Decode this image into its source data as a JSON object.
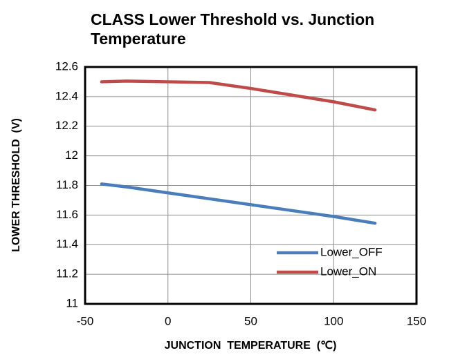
{
  "chart_data": {
    "type": "line",
    "title": "CLASS Lower Threshold vs. Junction Temperature",
    "x_label": "JUNCTION  TEMPERATURE  (℃)",
    "y_label": "LOWER THRESHOLD  (V)",
    "x": [
      -40,
      -25,
      0,
      25,
      50,
      75,
      100,
      125
    ],
    "series": [
      {
        "name": "Lower_OFF",
        "color": "#4a7ebb",
        "values": [
          11.81,
          11.79,
          11.75,
          11.71,
          11.67,
          11.63,
          11.59,
          11.545
        ]
      },
      {
        "name": "Lower_ON",
        "color": "#be4b48",
        "values": [
          12.5,
          12.505,
          12.5,
          12.495,
          12.455,
          12.41,
          12.365,
          12.31
        ]
      }
    ],
    "xlim": [
      -50,
      150
    ],
    "xticks": [
      -50,
      0,
      50,
      100,
      150
    ],
    "ylim": [
      11,
      12.6
    ],
    "yticks": [
      11,
      11.2,
      11.4,
      11.6,
      11.8,
      12,
      12.2,
      12.4,
      12.6
    ],
    "grid": true,
    "legend": "lower right"
  }
}
